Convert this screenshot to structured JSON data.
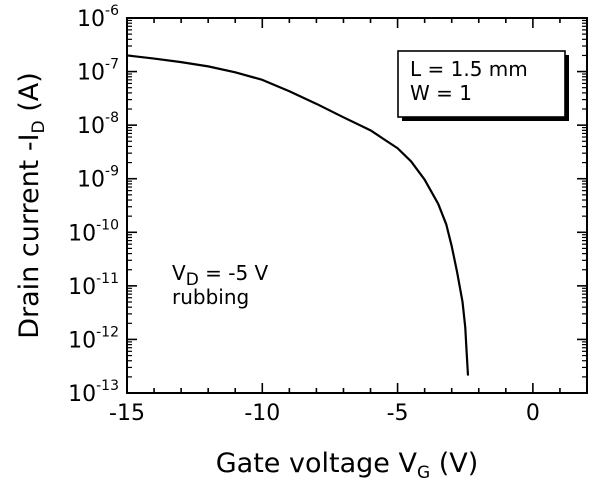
{
  "chart_data": {
    "type": "line",
    "title": "",
    "x_label": {
      "text": "Gate voltage V",
      "subscript": "G",
      "suffix": " (V)"
    },
    "y_label": {
      "text": "Drain current -I",
      "subscript": "D",
      "suffix": " (A)"
    },
    "xlim": [
      -15,
      2
    ],
    "x_ticks": [
      -15,
      -10,
      -5,
      0
    ],
    "x_tick_labels": [
      "-15",
      "-10",
      "-5",
      "0"
    ],
    "y_scale": "log",
    "ylim": [
      1e-13,
      1e-06
    ],
    "y_tick_exponents": [
      -6,
      -7,
      -8,
      -9,
      -10,
      -11,
      -12,
      -13
    ],
    "y_tick_base": "10",
    "grid": false,
    "legend_box": {
      "lines": [
        "L = 1.5 mm",
        "W = 1"
      ],
      "placement": "top-right"
    },
    "annotation": {
      "line1_prefix": "V",
      "line1_subscript": "D",
      "line1_suffix": " = -5 V",
      "line2": "rubbing",
      "placement": "lower-left"
    },
    "series": [
      {
        "color": "#000000",
        "points": [
          [
            -15.0,
            2e-07
          ],
          [
            -14.0,
            1.75e-07
          ],
          [
            -13.0,
            1.5e-07
          ],
          [
            -12.0,
            1.25e-07
          ],
          [
            -11.0,
            9.7e-08
          ],
          [
            -10.0,
            7e-08
          ],
          [
            -9.0,
            4.3e-08
          ],
          [
            -8.0,
            2.5e-08
          ],
          [
            -7.0,
            1.4e-08
          ],
          [
            -6.0,
            8e-09
          ],
          [
            -5.0,
            3.7e-09
          ],
          [
            -4.5,
            2.1e-09
          ],
          [
            -4.0,
            9.6e-10
          ],
          [
            -3.5,
            3.4e-10
          ],
          [
            -3.2,
            1.4e-10
          ],
          [
            -3.0,
            5.5e-11
          ],
          [
            -2.8,
            1.8e-11
          ],
          [
            -2.6,
            5e-12
          ],
          [
            -2.5,
            1.7e-12
          ],
          [
            -2.45,
            6e-13
          ],
          [
            -2.4,
            2.2e-13
          ]
        ]
      }
    ]
  }
}
